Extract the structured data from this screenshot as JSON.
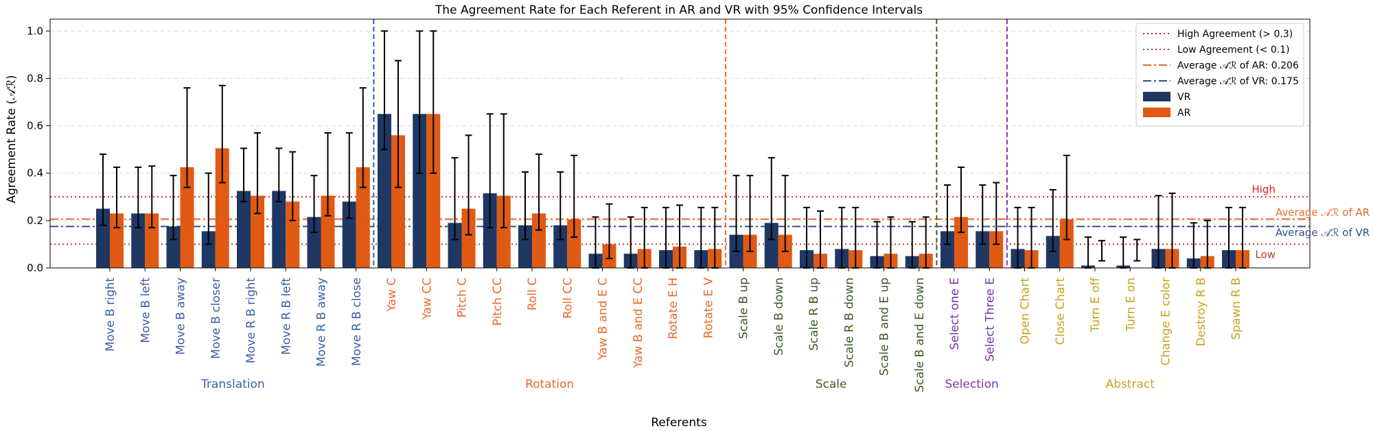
{
  "chart_data": {
    "type": "bar",
    "title": "The Agreement Rate for Each Referent in AR and VR with 95% Confidence Intervals",
    "xlabel": "Referents",
    "ylabel": "Agreement Rate (𝒜ℛ)",
    "ylim": [
      0,
      1.05
    ],
    "yticks": [
      "0.0",
      "0.2",
      "0.4",
      "0.6",
      "0.8",
      "1.0"
    ],
    "grid": "horizontal dashed",
    "legend_position": "top-right",
    "categories": [
      "Move B right",
      "Move B left",
      "Move B away",
      "Move B closer",
      "Move R B right",
      "Move R B left",
      "Move R B away",
      "Move R B close",
      "Yaw C",
      "Yaw CC",
      "Pitch C",
      "Pitch CC",
      "Roll C",
      "Roll CC",
      "Yaw B and E C",
      "Yaw B and E CC",
      "Rotate E H",
      "Rotate E V",
      "Scale B up",
      "Scale B down",
      "Scale R B up",
      "Scale R B down",
      "Scale B and E up",
      "Scale B and E down",
      "Select one E",
      "Select Three E",
      "Open Chart",
      "Close Chart",
      "Turn E off",
      "Turn E on",
      "Change E color",
      "Destroy R B",
      "Spawn R B"
    ],
    "category_groups": [
      0,
      0,
      0,
      0,
      0,
      0,
      0,
      0,
      1,
      1,
      1,
      1,
      1,
      1,
      1,
      1,
      1,
      1,
      2,
      2,
      2,
      2,
      2,
      2,
      3,
      3,
      4,
      4,
      4,
      4,
      4,
      4,
      4
    ],
    "groups": [
      {
        "name": "Translation",
        "color": "#3a5fa8"
      },
      {
        "name": "Rotation",
        "color": "#e8692a"
      },
      {
        "name": "Scale",
        "color": "#3d5a28"
      },
      {
        "name": "Selection",
        "color": "#7a35b0"
      },
      {
        "name": "Abstract",
        "color": "#c9a21c"
      }
    ],
    "series": [
      {
        "name": "VR",
        "color": "#1f3763",
        "values": [
          0.25,
          0.23,
          0.175,
          0.155,
          0.325,
          0.325,
          0.215,
          0.28,
          0.65,
          0.65,
          0.19,
          0.315,
          0.18,
          0.18,
          0.06,
          0.06,
          0.075,
          0.075,
          0.14,
          0.19,
          0.075,
          0.08,
          0.05,
          0.05,
          0.155,
          0.155,
          0.08,
          0.135,
          0.01,
          0.01,
          0.08,
          0.04,
          0.075
        ],
        "ci_low": [
          0.18,
          0.17,
          0.12,
          0.1,
          0.28,
          0.28,
          0.15,
          0.21,
          0.5,
          0.4,
          0.12,
          0.17,
          0.12,
          0.12,
          0.0,
          0.0,
          0.0,
          0.0,
          0.07,
          0.12,
          0.0,
          0.0,
          0.0,
          0.0,
          0.1,
          0.1,
          0.0,
          0.07,
          0.0,
          0.0,
          0.0,
          0.0,
          0.0
        ],
        "ci_high": [
          0.48,
          0.425,
          0.39,
          0.4,
          0.505,
          0.505,
          0.39,
          0.57,
          1.0,
          1.0,
          0.465,
          0.65,
          0.405,
          0.405,
          0.215,
          0.215,
          0.255,
          0.255,
          0.39,
          0.465,
          0.255,
          0.255,
          0.195,
          0.195,
          0.35,
          0.35,
          0.255,
          0.33,
          0.13,
          0.13,
          0.305,
          0.19,
          0.255
        ]
      },
      {
        "name": "AR",
        "color": "#e05a14",
        "values": [
          0.23,
          0.23,
          0.425,
          0.505,
          0.305,
          0.28,
          0.305,
          0.425,
          0.56,
          0.65,
          0.25,
          0.305,
          0.23,
          0.205,
          0.1,
          0.08,
          0.09,
          0.08,
          0.14,
          0.14,
          0.06,
          0.075,
          0.06,
          0.06,
          0.215,
          0.155,
          0.075,
          0.205,
          0.0,
          0.0,
          0.08,
          0.05,
          0.075
        ],
        "ci_low": [
          0.17,
          0.17,
          0.34,
          0.36,
          0.23,
          0.2,
          0.22,
          0.34,
          0.34,
          0.4,
          0.14,
          0.17,
          0.16,
          0.13,
          0.04,
          0.0,
          0.0,
          0.0,
          0.07,
          0.07,
          0.0,
          0.0,
          0.0,
          0.0,
          0.15,
          0.1,
          0.0,
          0.12,
          0.03,
          0.03,
          0.0,
          0.0,
          0.0
        ],
        "ci_high": [
          0.425,
          0.43,
          0.76,
          0.77,
          0.57,
          0.49,
          0.57,
          0.76,
          0.875,
          1.0,
          0.56,
          0.65,
          0.48,
          0.475,
          0.27,
          0.255,
          0.265,
          0.255,
          0.39,
          0.39,
          0.24,
          0.255,
          0.215,
          0.215,
          0.425,
          0.36,
          0.255,
          0.475,
          0.115,
          0.12,
          0.315,
          0.2,
          0.255
        ]
      }
    ],
    "reference_lines": [
      {
        "legend": "High Agreement (> 0.3)",
        "value": 0.3,
        "color": "#e41a1c",
        "style": "dotted",
        "label": "High"
      },
      {
        "legend": "Low Agreement (< 0.1)",
        "value": 0.1,
        "color": "#c0392b",
        "style": "dotted",
        "label": "Low"
      },
      {
        "legend": "Average 𝒜ℛ of AR: 0.206",
        "value": 0.206,
        "color": "#e8692a",
        "style": "dashdot",
        "label": "Average 𝒜ℛ of AR"
      },
      {
        "legend": "Average 𝒜ℛ of VR: 0.175",
        "value": 0.175,
        "color": "#2f4f80",
        "style": "dashdot",
        "label": "Average 𝒜ℛ of VR"
      }
    ],
    "group_separators": [
      {
        "after_index": 7,
        "color": "#2f5fb0"
      },
      {
        "after_index": 17,
        "color": "#e8692a"
      },
      {
        "after_index": 23,
        "color": "#3d5a28"
      },
      {
        "after_index": 25,
        "color": "#7a35b0"
      }
    ]
  }
}
